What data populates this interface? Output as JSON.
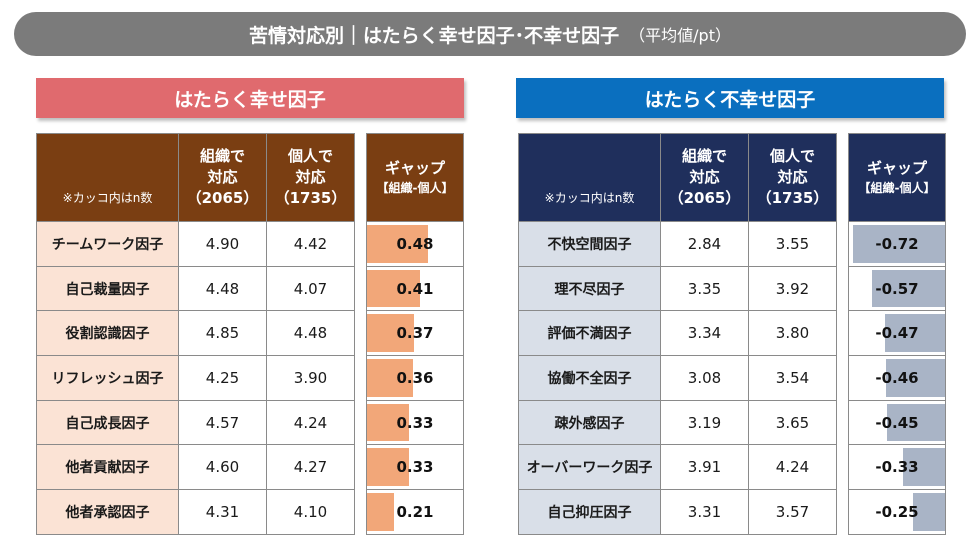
{
  "title": {
    "main": "苦情対応別｜はたらく幸せ因子･不幸せ因子",
    "sub": "（平均値/pt）"
  },
  "colors": {
    "happy_banner": "#e06a6e",
    "happy_header": "#7a3e12",
    "happy_bar": "#f2a779",
    "unhappy_banner": "#0a6fbf",
    "unhappy_header": "#1f2f5c",
    "unhappy_bar": "#a9b4c6"
  },
  "chart_data": [
    {
      "type": "table",
      "title": "はたらく幸せ因子",
      "note": "※カッコ内はn数",
      "col_org": "組織で対応",
      "col_org_l1": "組織で",
      "col_org_l2": "対応",
      "col_org_n": "（2065）",
      "col_ind_l1": "個人で",
      "col_ind_l2": "対応",
      "col_ind_n": "（1735）",
      "col_gap": "ギャップ",
      "col_gap_sub": "【組織-個人】",
      "rows": [
        {
          "name": "チームワーク因子",
          "org": "4.90",
          "ind": "4.42",
          "gap": "0.48",
          "gap_value": 0.48
        },
        {
          "name": "自己裁量因子",
          "org": "4.48",
          "ind": "4.07",
          "gap": "0.41",
          "gap_value": 0.41
        },
        {
          "name": "役割認識因子",
          "org": "4.85",
          "ind": "4.48",
          "gap": "0.37",
          "gap_value": 0.37
        },
        {
          "name": "リフレッシュ因子",
          "org": "4.25",
          "ind": "3.90",
          "gap": "0.36",
          "gap_value": 0.36
        },
        {
          "name": "自己成長因子",
          "org": "4.57",
          "ind": "4.24",
          "gap": "0.33",
          "gap_value": 0.33
        },
        {
          "name": "他者貢献因子",
          "org": "4.60",
          "ind": "4.27",
          "gap": "0.33",
          "gap_value": 0.33
        },
        {
          "name": "他者承認因子",
          "org": "4.31",
          "ind": "4.10",
          "gap": "0.21",
          "gap_value": 0.21
        }
      ]
    },
    {
      "type": "table",
      "title": "はたらく不幸せ因子",
      "note": "※カッコ内はn数",
      "col_org_l1": "組織で",
      "col_org_l2": "対応",
      "col_org_n": "（2065）",
      "col_ind_l1": "個人で",
      "col_ind_l2": "対応",
      "col_ind_n": "（1735）",
      "col_gap": "ギャップ",
      "col_gap_sub": "【組織-個人】",
      "rows": [
        {
          "name": "不快空間因子",
          "org": "2.84",
          "ind": "3.55",
          "gap": "-0.72",
          "gap_value": -0.72
        },
        {
          "name": "理不尽因子",
          "org": "3.35",
          "ind": "3.92",
          "gap": "-0.57",
          "gap_value": -0.57
        },
        {
          "name": "評価不満因子",
          "org": "3.34",
          "ind": "3.80",
          "gap": "-0.47",
          "gap_value": -0.47
        },
        {
          "name": "協働不全因子",
          "org": "3.08",
          "ind": "3.54",
          "gap": "-0.46",
          "gap_value": -0.46
        },
        {
          "name": "疎外感因子",
          "org": "3.19",
          "ind": "3.65",
          "gap": "-0.45",
          "gap_value": -0.45
        },
        {
          "name": "オーバーワーク因子",
          "org": "3.91",
          "ind": "4.24",
          "gap": "-0.33",
          "gap_value": -0.33
        },
        {
          "name": "自己抑圧因子",
          "org": "3.31",
          "ind": "3.57",
          "gap": "-0.25",
          "gap_value": -0.25
        }
      ]
    }
  ]
}
